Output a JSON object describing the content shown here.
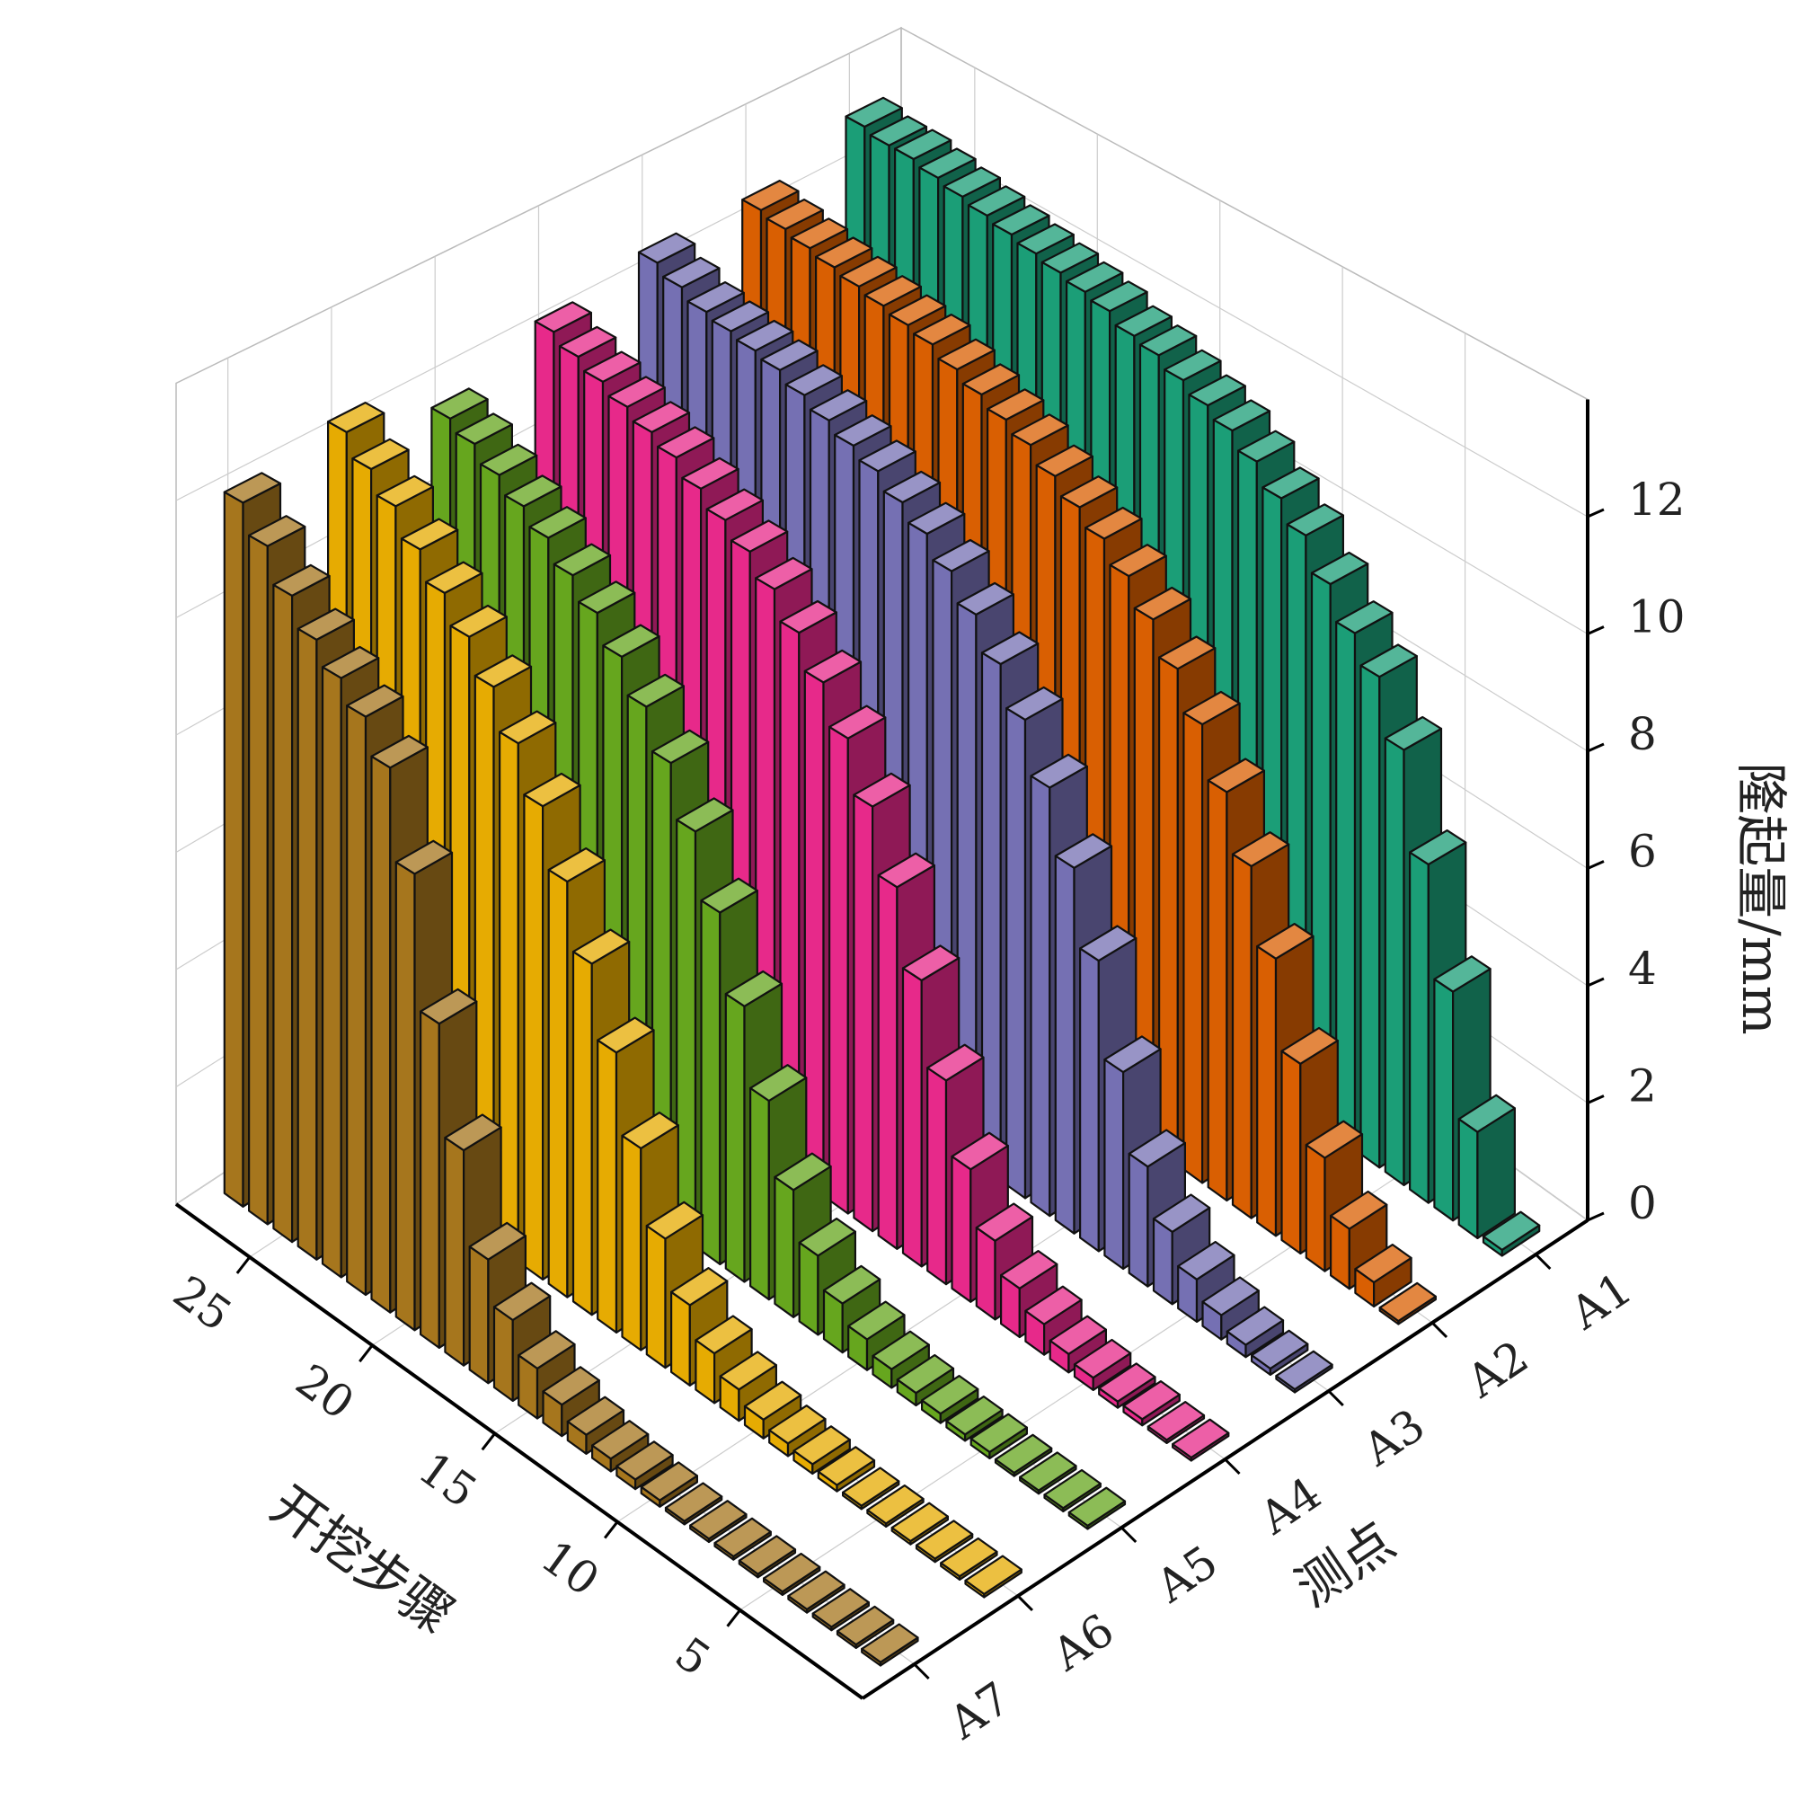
{
  "chart_data": {
    "type": "bar3d",
    "x_label": "开挖步骤",
    "y_label": "测点",
    "z_label": "隆起量/mm",
    "x": [
      1,
      2,
      3,
      4,
      5,
      6,
      7,
      8,
      9,
      10,
      11,
      12,
      13,
      14,
      15,
      16,
      17,
      18,
      19,
      20,
      21,
      22,
      23,
      24,
      25,
      26,
      27
    ],
    "xlim": [
      0,
      28
    ],
    "xticks": [
      5,
      10,
      15,
      20,
      25
    ],
    "zlim": [
      0,
      14
    ],
    "zticks": [
      0,
      2,
      4,
      6,
      8,
      10,
      12
    ],
    "grid": true,
    "series": [
      {
        "name": "A1",
        "color": "#1b9e77",
        "values": [
          0.1,
          1.8,
          3.9,
          5.8,
          7.5,
          8.5,
          9.0,
          9.6,
          10.2,
          10.6,
          11.0,
          11.3,
          11.5,
          11.7,
          11.9,
          12.0,
          12.2,
          12.3,
          12.4,
          12.5,
          12.6,
          12.7,
          12.8,
          12.9,
          13.0,
          13.0,
          13.1
        ]
      },
      {
        "name": "A2",
        "color": "#d95f02",
        "values": [
          0.05,
          0.4,
          1.0,
          1.9,
          3.2,
          4.7,
          6.0,
          7.0,
          7.9,
          8.6,
          9.2,
          9.7,
          10.1,
          10.4,
          10.7,
          11.0,
          11.2,
          11.4,
          11.6,
          11.8,
          11.9,
          12.0,
          12.1,
          12.2,
          12.3,
          12.4,
          12.5
        ]
      },
      {
        "name": "A3",
        "color": "#7570b3",
        "values": [
          0.05,
          0.1,
          0.2,
          0.4,
          0.7,
          1.2,
          2.0,
          3.3,
          4.9,
          6.2,
          7.3,
          8.2,
          8.9,
          9.5,
          10.0,
          10.4,
          10.7,
          11.0,
          11.2,
          11.4,
          11.6,
          11.8,
          11.9,
          12.0,
          12.1,
          12.3,
          12.5
        ]
      },
      {
        "name": "A4",
        "color": "#e7298a",
        "values": [
          0.05,
          0.05,
          0.1,
          0.1,
          0.2,
          0.3,
          0.5,
          0.8,
          1.3,
          2.2,
          3.4,
          4.8,
          6.1,
          7.2,
          8.1,
          8.8,
          9.4,
          9.9,
          10.3,
          10.6,
          10.9,
          11.2,
          11.4,
          11.6,
          11.8,
          12.0,
          12.2
        ]
      },
      {
        "name": "A5",
        "color": "#66a61e",
        "values": [
          0.05,
          0.05,
          0.05,
          0.05,
          0.1,
          0.1,
          0.15,
          0.2,
          0.3,
          0.5,
          0.8,
          1.3,
          2.1,
          3.3,
          4.6,
          5.9,
          7.0,
          7.9,
          8.6,
          9.2,
          9.7,
          10.1,
          10.5,
          10.8,
          11.1,
          11.4,
          11.6
        ]
      },
      {
        "name": "A6",
        "color": "#e6ab02",
        "values": [
          0.05,
          0.05,
          0.05,
          0.05,
          0.05,
          0.05,
          0.1,
          0.15,
          0.2,
          0.3,
          0.5,
          0.8,
          1.3,
          2.1,
          3.3,
          4.6,
          5.8,
          6.9,
          7.9,
          8.7,
          9.4,
          10.0,
          10.5,
          11.0,
          11.5,
          11.9,
          12.3
        ]
      },
      {
        "name": "A7",
        "color": "#a6761d",
        "values": [
          0.05,
          0.05,
          0.05,
          0.05,
          0.05,
          0.05,
          0.05,
          0.05,
          0.05,
          0.1,
          0.15,
          0.2,
          0.3,
          0.5,
          0.8,
          1.3,
          2.0,
          3.5,
          5.3,
          7.5,
          9.0,
          9.6,
          10.0,
          10.4,
          10.9,
          11.5,
          12.0
        ]
      }
    ]
  }
}
